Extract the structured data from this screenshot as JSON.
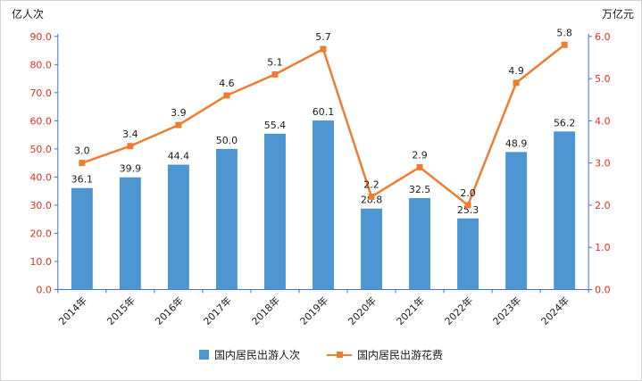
{
  "chart_data": {
    "type": "combo-bar-line",
    "title": "",
    "categories": [
      "2014年",
      "2015年",
      "2016年",
      "2017年",
      "2018年",
      "2019年",
      "2020年",
      "2021年",
      "2022年",
      "2023年",
      "2024年"
    ],
    "series": [
      {
        "name": "国内居民出游人次",
        "type": "bar",
        "axis": "left",
        "values": [
          36.1,
          39.9,
          44.4,
          50.0,
          55.4,
          60.1,
          28.8,
          32.5,
          25.3,
          48.9,
          56.2
        ],
        "color": "#4E96D2"
      },
      {
        "name": "国内居民出游花费",
        "type": "line",
        "axis": "right",
        "values": [
          3.0,
          3.4,
          3.9,
          4.6,
          5.1,
          5.7,
          2.2,
          2.9,
          2.0,
          4.9,
          5.8
        ],
        "color": "#ED7D31"
      }
    ],
    "bar_labels": [
      "36.1",
      "39.9",
      "44.4",
      "50.0",
      "55.4",
      "60.1",
      "28.8",
      "32.5",
      "25.3",
      "48.9",
      "56.2"
    ],
    "line_labels": [
      "3.0",
      "3.4",
      "3.9",
      "4.6",
      "5.1",
      "5.7",
      "2.2",
      "2.9",
      "2.0",
      "4.9",
      "5.8"
    ],
    "left_axis": {
      "title": "亿人次",
      "min": 0,
      "max": 90,
      "step": 10,
      "tick_labels": [
        "0.0",
        "10.0",
        "20.0",
        "30.0",
        "40.0",
        "50.0",
        "60.0",
        "70.0",
        "80.0",
        "90.0"
      ]
    },
    "right_axis": {
      "title": "万亿元",
      "min": 0,
      "max": 6,
      "step": 1,
      "tick_labels": [
        "0.0",
        "1.0",
        "2.0",
        "3.0",
        "4.0",
        "5.0",
        "6.0"
      ]
    },
    "legend": [
      {
        "label": "国内居民出游人次",
        "marker": "square",
        "color": "#4E96D2"
      },
      {
        "label": "国内居民出游花费",
        "marker": "line-square",
        "color": "#ED7D31"
      }
    ],
    "layout": {
      "grid": false,
      "legend_position": "bottom-center",
      "x_label_rotation": -45
    },
    "colors": {
      "bar": "#4E96D2",
      "line": "#ED7D31",
      "axis_line": "#4472C4",
      "tick_label": "#E03020",
      "data_label": "#1a1a1a",
      "category_label": "#1a1a1a"
    }
  }
}
